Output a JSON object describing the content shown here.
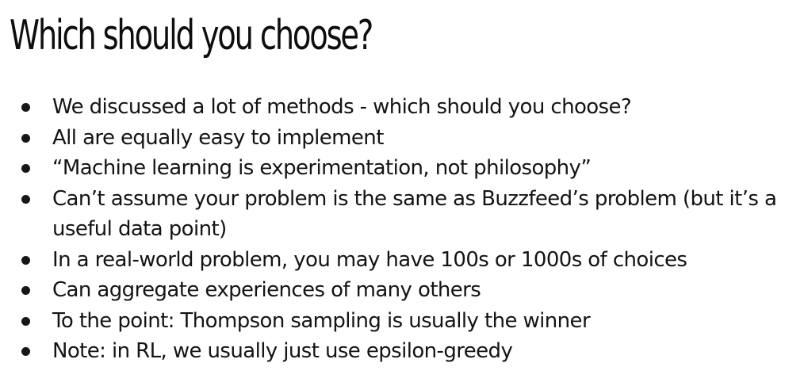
{
  "slide": {
    "title": "Which should you choose?",
    "bullets": [
      "We discussed a lot of methods - which should you choose?",
      "All are equally easy to implement",
      "“Machine learning is experimentation, not philosophy”",
      "Can’t assume your problem is the same as Buzzfeed’s problem (but it’s a useful data point)",
      "In a real-world problem, you may have 100s or 1000s of choices",
      "Can aggregate experiences of many others",
      "To the point: Thompson sampling is usually the winner",
      "Note: in RL, we usually just use epsilon-greedy"
    ]
  }
}
